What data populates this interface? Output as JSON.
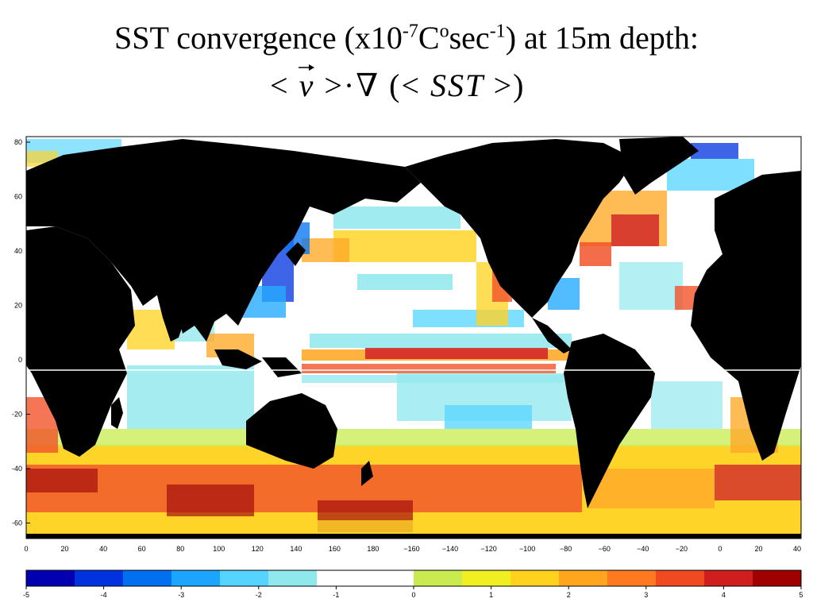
{
  "title": {
    "main": "SST convergence (x10",
    "exp1": "-7",
    "unit": "C",
    "deg": "o",
    "sec": "sec",
    "exp2": "-1",
    "tail": ") at 15m depth:"
  },
  "formula": {
    "lt1": "<",
    "v": "v",
    "gt1": ">",
    "dot": "·",
    "nabla": "∇",
    "lp": "(",
    "lt2": "<",
    "sst": "SST",
    "gt2": ">",
    "rp": ")"
  },
  "map": {
    "y_ticks": [
      "80",
      "60",
      "40",
      "20",
      "0",
      "-20",
      "-40",
      "-60"
    ],
    "x_ticks": [
      "0",
      "20",
      "40",
      "60",
      "80",
      "100",
      "120",
      "140",
      "160",
      "180",
      "−160",
      "−140",
      "−120",
      "−100",
      "−80",
      "−60",
      "−40",
      "−20",
      "0",
      "20",
      "40"
    ]
  },
  "colorbar": {
    "ticks": [
      "-5",
      "-4",
      "-3",
      "-2",
      "-1",
      "0",
      "1",
      "2",
      "3",
      "4",
      "5"
    ],
    "colors": [
      "#0000b0",
      "#0033e0",
      "#0070f0",
      "#1aa6ff",
      "#55d4ff",
      "#8fe8ec",
      "#ffffff",
      "#ffffff",
      "#c8ec50",
      "#f0f020",
      "#ffd21e",
      "#ffa51e",
      "#ff7a1e",
      "#f04a1e",
      "#d01e1e",
      "#a00000"
    ]
  }
}
